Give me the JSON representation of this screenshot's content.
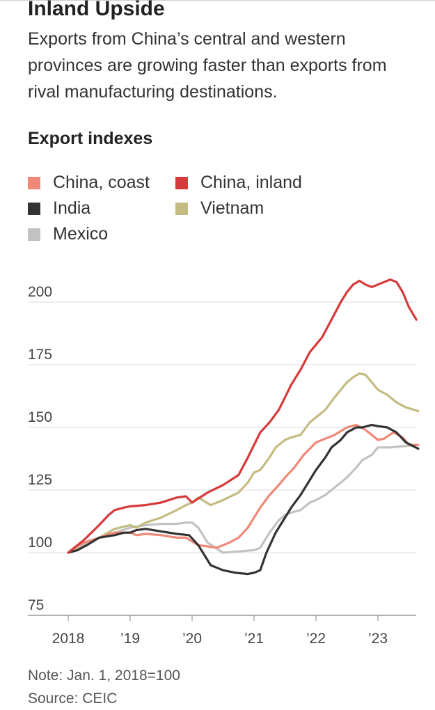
{
  "header": {
    "title": "Inland Upside",
    "subtitle": "Exports from China’s central and western provinces are growing faster than exports from rival manufacturing destinations."
  },
  "footer": {
    "note": "Note: Jan. 1, 2018=100",
    "source": "Source: CEIC"
  },
  "chart_data": {
    "type": "line",
    "title": "Export indexes",
    "xlabel": "",
    "ylabel": "",
    "xlim": [
      2018.0,
      2023.65
    ],
    "ylim": [
      75,
      212
    ],
    "y_ticks": [
      75,
      100,
      125,
      150,
      175,
      200
    ],
    "x_ticks": [
      {
        "value": 2018,
        "label": "2018"
      },
      {
        "value": 2019,
        "label": "’19"
      },
      {
        "value": 2020,
        "label": "’20"
      },
      {
        "value": 2021,
        "label": "’21"
      },
      {
        "value": 2022,
        "label": "’22"
      },
      {
        "value": 2023,
        "label": "’23"
      }
    ],
    "grid": "horizontal",
    "legend_position": "top",
    "series": [
      {
        "name": "China, coast",
        "color": "#f08878",
        "points": [
          [
            2018.0,
            100
          ],
          [
            2018.1,
            102
          ],
          [
            2018.25,
            104
          ],
          [
            2018.5,
            106
          ],
          [
            2018.75,
            108
          ],
          [
            2019.0,
            108
          ],
          [
            2019.1,
            107
          ],
          [
            2019.25,
            107.5
          ],
          [
            2019.5,
            107
          ],
          [
            2019.75,
            106
          ],
          [
            2019.9,
            106
          ],
          [
            2020.1,
            103
          ],
          [
            2020.25,
            102.5
          ],
          [
            2020.4,
            102
          ],
          [
            2020.6,
            104
          ],
          [
            2020.75,
            106
          ],
          [
            2020.9,
            110
          ],
          [
            2021.0,
            114
          ],
          [
            2021.1,
            118
          ],
          [
            2021.25,
            123
          ],
          [
            2021.4,
            127
          ],
          [
            2021.5,
            130
          ],
          [
            2021.65,
            134
          ],
          [
            2021.8,
            139
          ],
          [
            2022.0,
            144
          ],
          [
            2022.15,
            145.5
          ],
          [
            2022.3,
            147
          ],
          [
            2022.5,
            150
          ],
          [
            2022.65,
            151
          ],
          [
            2022.8,
            149
          ],
          [
            2022.9,
            147
          ],
          [
            2023.0,
            145
          ],
          [
            2023.1,
            145.5
          ],
          [
            2023.25,
            148
          ],
          [
            2023.4,
            146
          ],
          [
            2023.5,
            143
          ],
          [
            2023.65,
            143
          ]
        ]
      },
      {
        "name": "China, inland",
        "color": "#d63a3a",
        "points": [
          [
            2018.0,
            100
          ],
          [
            2018.1,
            102
          ],
          [
            2018.25,
            105
          ],
          [
            2018.5,
            111
          ],
          [
            2018.65,
            115
          ],
          [
            2018.75,
            117
          ],
          [
            2018.9,
            118
          ],
          [
            2019.0,
            118.5
          ],
          [
            2019.25,
            119
          ],
          [
            2019.5,
            120
          ],
          [
            2019.75,
            122
          ],
          [
            2019.9,
            122.5
          ],
          [
            2020.0,
            120
          ],
          [
            2020.25,
            124
          ],
          [
            2020.5,
            127
          ],
          [
            2020.75,
            131
          ],
          [
            2020.9,
            138
          ],
          [
            2021.0,
            143
          ],
          [
            2021.1,
            148
          ],
          [
            2021.25,
            152
          ],
          [
            2021.4,
            157
          ],
          [
            2021.5,
            162
          ],
          [
            2021.6,
            167
          ],
          [
            2021.75,
            173
          ],
          [
            2021.9,
            180
          ],
          [
            2022.0,
            183
          ],
          [
            2022.1,
            186
          ],
          [
            2022.25,
            193
          ],
          [
            2022.4,
            200
          ],
          [
            2022.5,
            204
          ],
          [
            2022.6,
            207
          ],
          [
            2022.7,
            208.5
          ],
          [
            2022.8,
            207
          ],
          [
            2022.9,
            206
          ],
          [
            2023.0,
            207
          ],
          [
            2023.1,
            208
          ],
          [
            2023.2,
            209
          ],
          [
            2023.3,
            208
          ],
          [
            2023.4,
            204
          ],
          [
            2023.5,
            198
          ],
          [
            2023.62,
            193
          ]
        ]
      },
      {
        "name": "India",
        "color": "#333333",
        "points": [
          [
            2018.0,
            100
          ],
          [
            2018.15,
            101
          ],
          [
            2018.3,
            103
          ],
          [
            2018.5,
            106
          ],
          [
            2018.75,
            107
          ],
          [
            2018.9,
            108
          ],
          [
            2019.0,
            108
          ],
          [
            2019.1,
            109
          ],
          [
            2019.25,
            109.5
          ],
          [
            2019.5,
            108.5
          ],
          [
            2019.75,
            107.5
          ],
          [
            2019.95,
            107
          ],
          [
            2020.1,
            103
          ],
          [
            2020.3,
            95
          ],
          [
            2020.5,
            93
          ],
          [
            2020.7,
            92
          ],
          [
            2020.9,
            91.5
          ],
          [
            2021.0,
            92
          ],
          [
            2021.1,
            93
          ],
          [
            2021.2,
            100
          ],
          [
            2021.35,
            108
          ],
          [
            2021.5,
            114
          ],
          [
            2021.6,
            118
          ],
          [
            2021.75,
            123
          ],
          [
            2021.9,
            129
          ],
          [
            2022.0,
            133
          ],
          [
            2022.15,
            138
          ],
          [
            2022.25,
            142
          ],
          [
            2022.4,
            145
          ],
          [
            2022.5,
            148
          ],
          [
            2022.65,
            150
          ],
          [
            2022.75,
            150
          ],
          [
            2022.9,
            151
          ],
          [
            2023.0,
            150.5
          ],
          [
            2023.15,
            150
          ],
          [
            2023.3,
            148
          ],
          [
            2023.45,
            144
          ],
          [
            2023.65,
            141.5
          ]
        ]
      },
      {
        "name": "Vietnam",
        "color": "#c4bb82",
        "points": [
          [
            2018.0,
            100
          ],
          [
            2018.15,
            101.5
          ],
          [
            2018.3,
            103
          ],
          [
            2018.5,
            106
          ],
          [
            2018.75,
            109.5
          ],
          [
            2019.0,
            111
          ],
          [
            2019.1,
            110
          ],
          [
            2019.25,
            112
          ],
          [
            2019.5,
            114
          ],
          [
            2019.75,
            117
          ],
          [
            2019.9,
            119
          ],
          [
            2020.0,
            120
          ],
          [
            2020.1,
            122
          ],
          [
            2020.3,
            119
          ],
          [
            2020.5,
            121
          ],
          [
            2020.75,
            124
          ],
          [
            2020.9,
            128
          ],
          [
            2021.0,
            132
          ],
          [
            2021.1,
            133
          ],
          [
            2021.25,
            138
          ],
          [
            2021.35,
            142
          ],
          [
            2021.5,
            145
          ],
          [
            2021.6,
            146
          ],
          [
            2021.75,
            147
          ],
          [
            2021.9,
            152
          ],
          [
            2022.0,
            154
          ],
          [
            2022.15,
            157
          ],
          [
            2022.3,
            162
          ],
          [
            2022.4,
            165
          ],
          [
            2022.5,
            168
          ],
          [
            2022.6,
            170
          ],
          [
            2022.7,
            171.5
          ],
          [
            2022.8,
            171
          ],
          [
            2022.9,
            168
          ],
          [
            2023.0,
            165
          ],
          [
            2023.15,
            163
          ],
          [
            2023.3,
            160
          ],
          [
            2023.45,
            158
          ],
          [
            2023.65,
            156.5
          ]
        ]
      },
      {
        "name": "Mexico",
        "color": "#c2c2c2",
        "points": [
          [
            2018.0,
            100
          ],
          [
            2018.15,
            102
          ],
          [
            2018.3,
            104
          ],
          [
            2018.5,
            106
          ],
          [
            2018.75,
            108
          ],
          [
            2019.0,
            110
          ],
          [
            2019.25,
            111
          ],
          [
            2019.5,
            111.5
          ],
          [
            2019.75,
            111.5
          ],
          [
            2019.9,
            112
          ],
          [
            2020.0,
            112
          ],
          [
            2020.1,
            110
          ],
          [
            2020.25,
            104
          ],
          [
            2020.5,
            100
          ],
          [
            2020.75,
            100.5
          ],
          [
            2021.0,
            101
          ],
          [
            2021.1,
            102
          ],
          [
            2021.25,
            108
          ],
          [
            2021.4,
            113
          ],
          [
            2021.5,
            115
          ],
          [
            2021.6,
            116
          ],
          [
            2021.75,
            117
          ],
          [
            2021.9,
            120
          ],
          [
            2022.0,
            121
          ],
          [
            2022.15,
            123
          ],
          [
            2022.3,
            126
          ],
          [
            2022.5,
            130
          ],
          [
            2022.65,
            134
          ],
          [
            2022.75,
            137
          ],
          [
            2022.9,
            139
          ],
          [
            2023.0,
            142
          ],
          [
            2023.2,
            142
          ],
          [
            2023.4,
            142.5
          ],
          [
            2023.65,
            143
          ]
        ]
      }
    ]
  }
}
